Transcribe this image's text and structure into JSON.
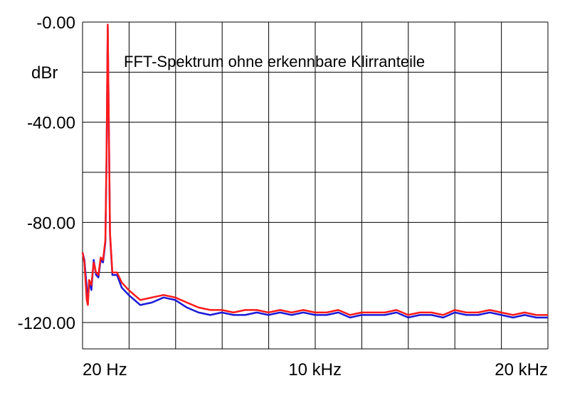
{
  "chart_data": {
    "type": "line",
    "title": "FFT-Spektrum ohne erkennbare Klirranteile",
    "ylabel": "dBr",
    "xlabel": "",
    "xlim": [
      20,
      20000
    ],
    "ylim": [
      -130,
      0
    ],
    "x_ticks": [
      {
        "value": 20,
        "label": "20 Hz"
      },
      {
        "value": 10000,
        "label": "10 kHz"
      },
      {
        "value": 20000,
        "label": "20 kHz"
      }
    ],
    "y_ticks": [
      {
        "value": 0,
        "label": "-0.00"
      },
      {
        "value": -40,
        "label": "-40.00"
      },
      {
        "value": -80,
        "label": "-80.00"
      },
      {
        "value": -120,
        "label": "-120.00"
      }
    ],
    "grid": true,
    "series": [
      {
        "color": "#1a1ad6",
        "x": [
          20,
          100,
          200,
          250,
          300,
          400,
          500,
          600,
          700,
          800,
          900,
          1000,
          1050,
          1100,
          1200,
          1300,
          1500,
          1700,
          2000,
          2500,
          3000,
          3500,
          4000,
          4500,
          5000,
          5500,
          6000,
          6500,
          7000,
          7500,
          8000,
          8500,
          9000,
          9500,
          10000,
          10500,
          11000,
          11500,
          12000,
          12500,
          13000,
          13500,
          14000,
          14500,
          15000,
          15500,
          16000,
          16500,
          17000,
          17500,
          18000,
          18500,
          19000,
          19500,
          20000
        ],
        "y": [
          -92,
          -95,
          -106,
          -112,
          -104,
          -107,
          -95,
          -101,
          -102,
          -95,
          -96,
          -88,
          -55,
          -2,
          -85,
          -101,
          -101,
          -106,
          -109,
          -113,
          -112,
          -110,
          -111,
          -114,
          -116,
          -117,
          -116,
          -117,
          -117,
          -116,
          -117,
          -116,
          -117,
          -116,
          -117,
          -117,
          -116,
          -118,
          -117,
          -117,
          -117,
          -116,
          -118,
          -117,
          -117,
          -118,
          -116,
          -117,
          -117,
          -116,
          -117,
          -118,
          -117,
          -118,
          -118
        ]
      },
      {
        "color": "#ff1a1a",
        "x": [
          20,
          100,
          200,
          250,
          300,
          400,
          500,
          600,
          700,
          800,
          900,
          1000,
          1050,
          1100,
          1200,
          1300,
          1500,
          1700,
          2000,
          2500,
          3000,
          3500,
          4000,
          4500,
          5000,
          5500,
          6000,
          6500,
          7000,
          7500,
          8000,
          8500,
          9000,
          9500,
          10000,
          10500,
          11000,
          11500,
          12000,
          12500,
          13000,
          13500,
          14000,
          14500,
          15000,
          15500,
          16000,
          16500,
          17000,
          17500,
          18000,
          18500,
          19000,
          19500,
          20000
        ],
        "y": [
          -92,
          -96,
          -111,
          -113,
          -103,
          -105,
          -96,
          -100,
          -101,
          -94,
          -95,
          -87,
          -54,
          -1,
          -84,
          -100,
          -100,
          -104,
          -107,
          -111,
          -110,
          -109,
          -110,
          -112,
          -114,
          -115,
          -115,
          -116,
          -115,
          -115,
          -116,
          -115,
          -116,
          -115,
          -116,
          -116,
          -115,
          -117,
          -116,
          -116,
          -116,
          -115,
          -117,
          -116,
          -116,
          -117,
          -115,
          -116,
          -116,
          -115,
          -116,
          -117,
          -116,
          -117,
          -117
        ]
      }
    ]
  }
}
